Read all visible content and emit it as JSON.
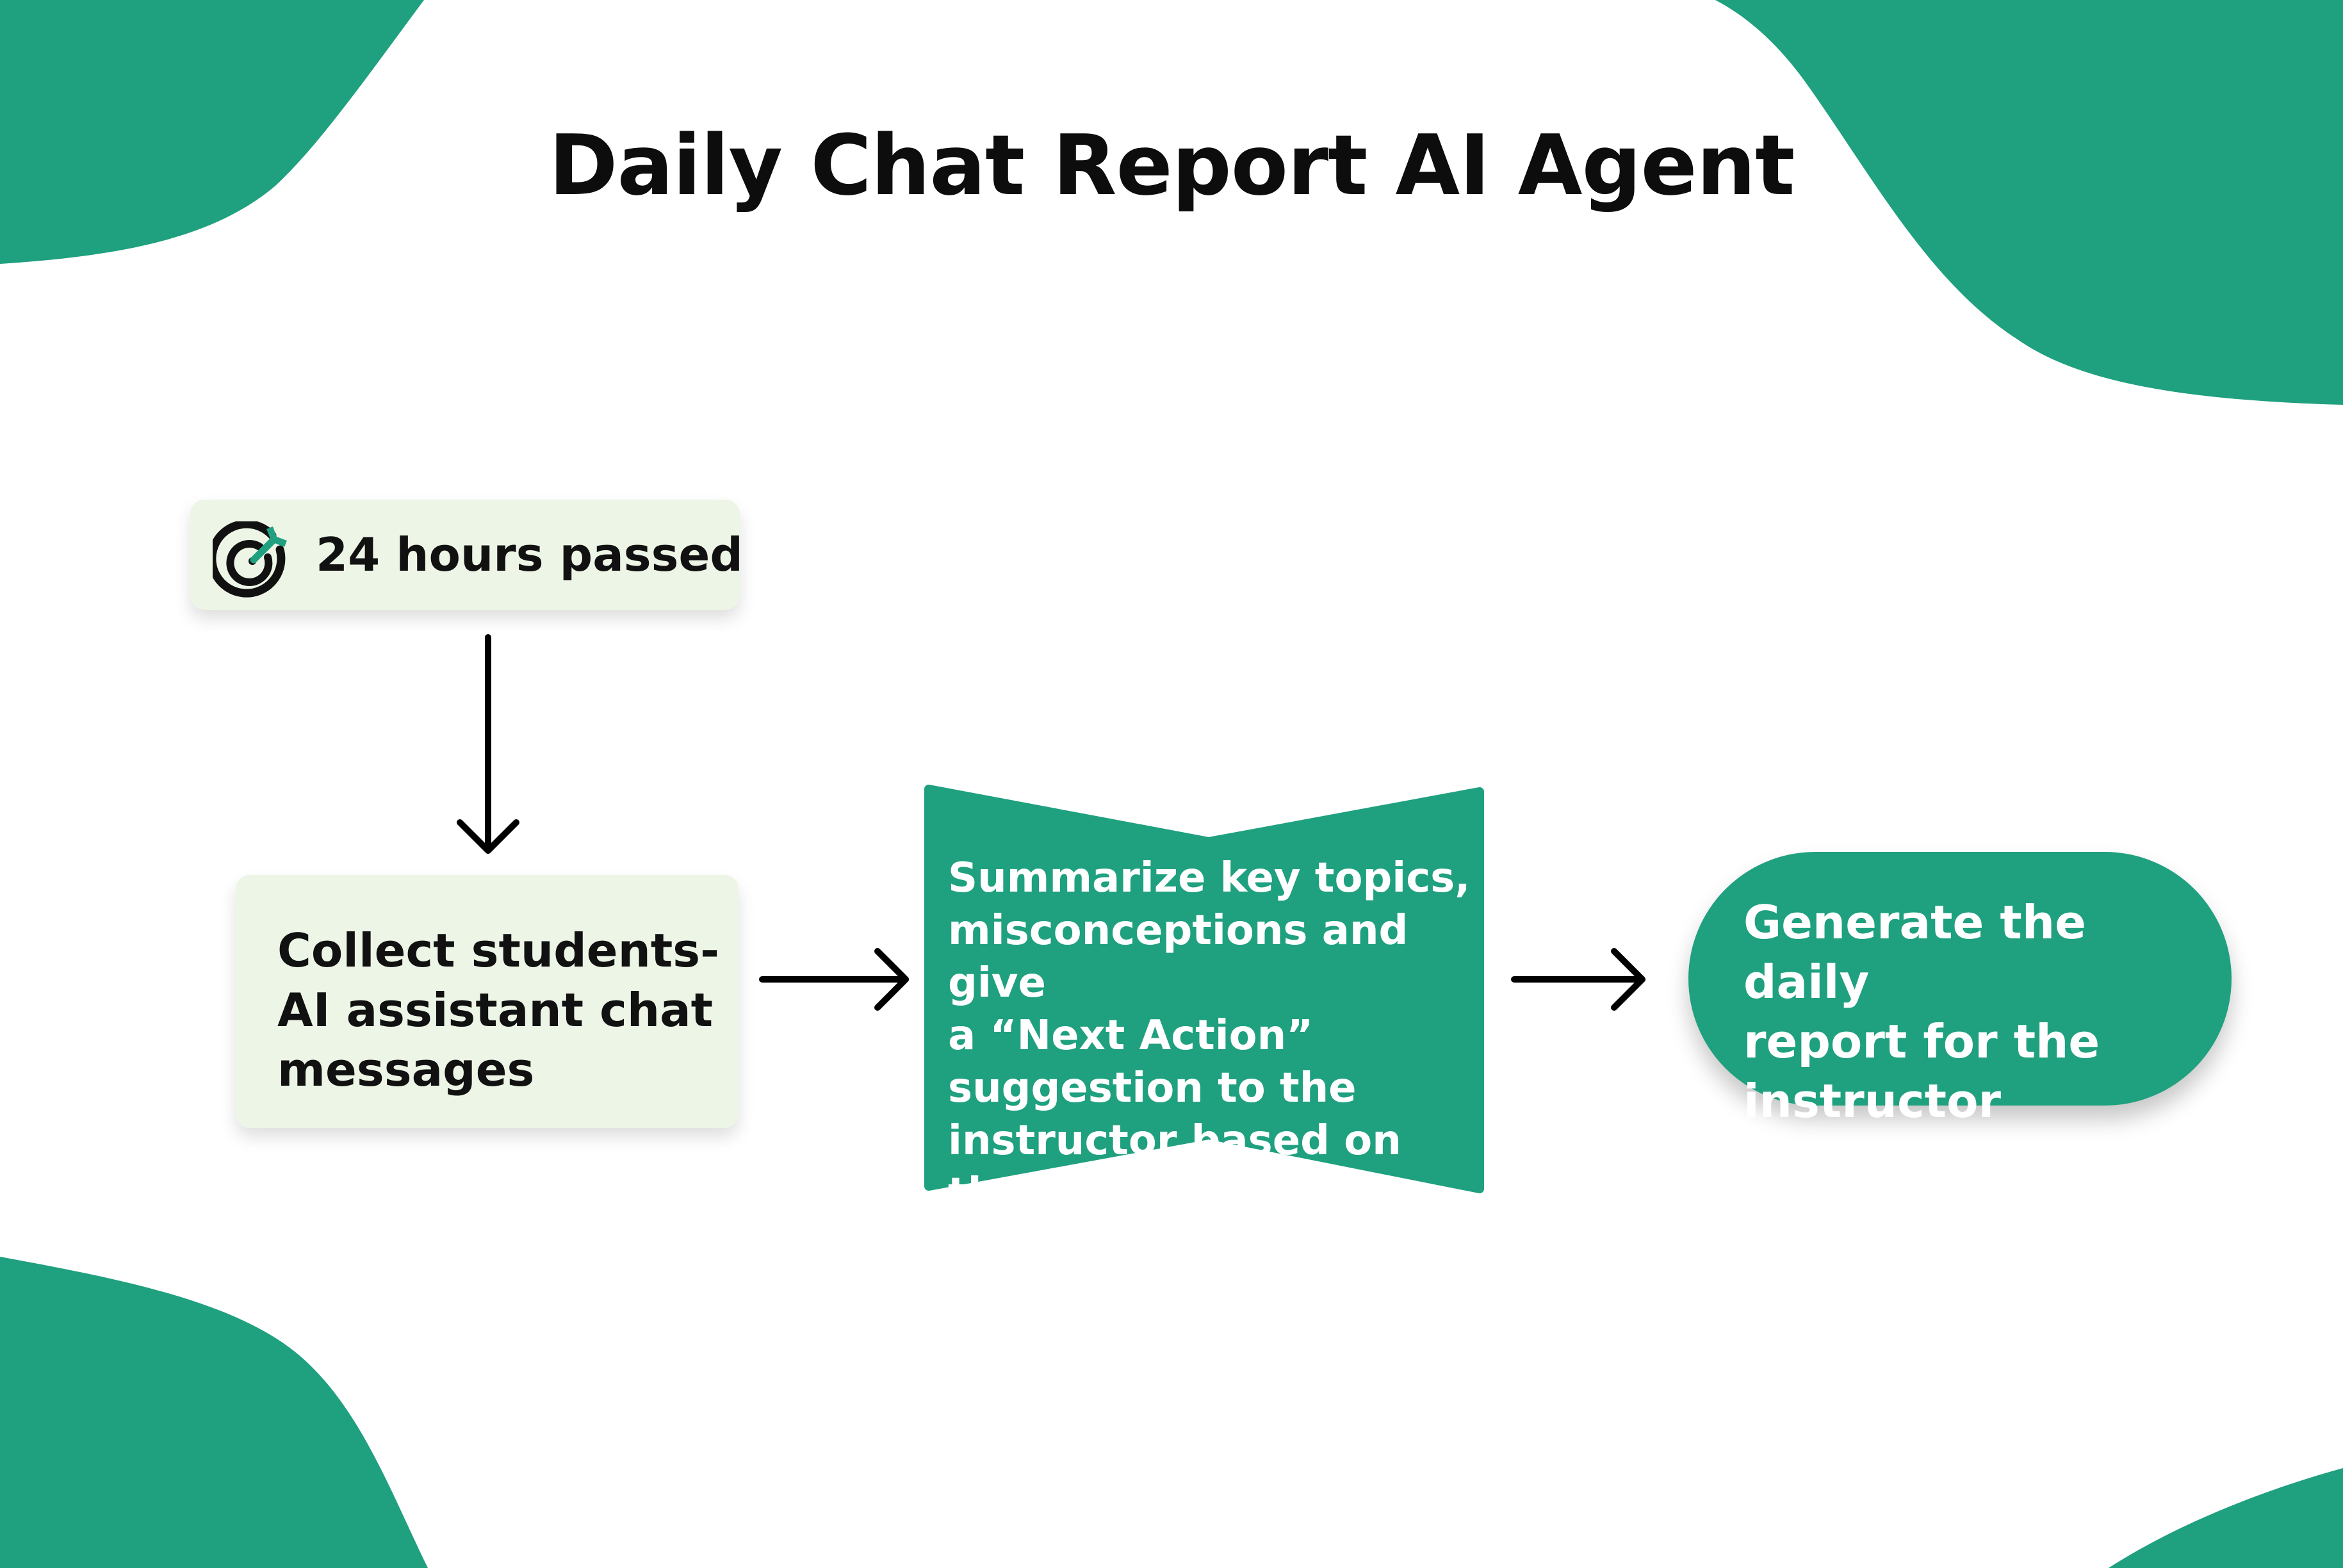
{
  "title": "Daily Chat Report AI Agent",
  "colors": {
    "brand_green": "#1fa07f",
    "light_card": "#edf6e6",
    "text_dark": "#111111",
    "text_light": "#ffffff"
  },
  "flow": {
    "trigger": {
      "label": "24 hours passed",
      "icon": "target-arrow-icon"
    },
    "collect": {
      "label": "Collect students-\nAI assistant chat\nmessages"
    },
    "summarize": {
      "label": "Summarize key topics,\nmisconceptions and give\na “Next Action”\nsuggestion to the\ninstructor based on them"
    },
    "generate": {
      "label": "Generate the daily\nreport for the\ninstructor"
    }
  }
}
